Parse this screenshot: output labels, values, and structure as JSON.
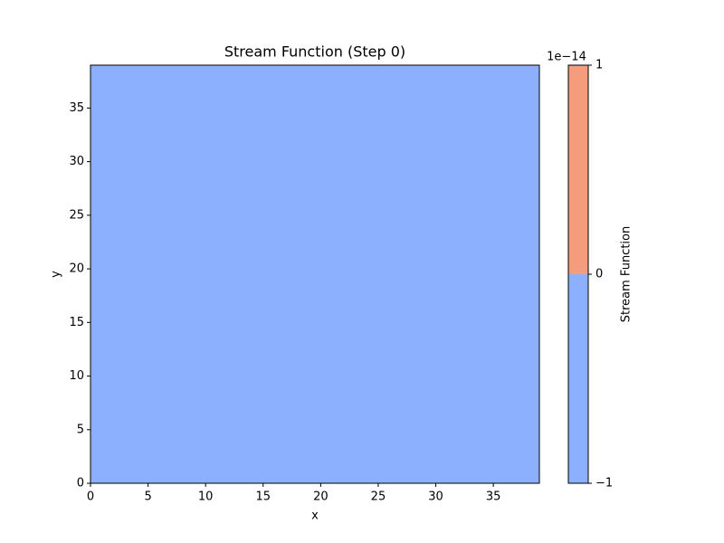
{
  "chart_data": {
    "type": "contourf",
    "title": "Stream Function (Step 0)",
    "x_label": "x",
    "y_label": "y",
    "xlim": [
      0,
      39
    ],
    "ylim": [
      0,
      39
    ],
    "xticks": [
      0,
      5,
      10,
      15,
      20,
      25,
      30,
      35
    ],
    "yticks": [
      0,
      5,
      10,
      15,
      20,
      25,
      30,
      35
    ],
    "field_color": "#8db0fe",
    "colorbar": {
      "label": "Stream Function",
      "offset_label": "1e−14",
      "lim": [
        -1,
        1
      ],
      "ticks": [
        {
          "value": -1,
          "label": "−1"
        },
        0,
        1
      ],
      "levels": [
        -1,
        0,
        1
      ],
      "colors": [
        "#8db0fe",
        "#f59c7d"
      ]
    }
  }
}
